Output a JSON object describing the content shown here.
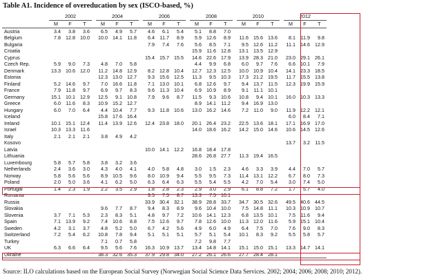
{
  "title": "Table A1. Incidence of overeducation by sex (ISCO-based, %)",
  "source": "Source: ILO calculations based on the European Social Survey (Norwegian Social Science Data Services. 2002; 2004; 2006; 2008; 2010; 2012).",
  "years": [
    "2002",
    "2004",
    "2006",
    "2008",
    "2010",
    "2012"
  ],
  "sub_headers": [
    "M",
    "F",
    "T"
  ],
  "highlight_color": "#cc1c2b",
  "rows": [
    {
      "country": "Austria",
      "v": [
        "3.4",
        "3.8",
        "3.6",
        "6.5",
        "4.9",
        "5.7",
        "4.6",
        "6.1",
        "5.4",
        "5.1",
        "8.8",
        "7.0",
        "",
        "",
        "",
        "",
        "",
        ""
      ]
    },
    {
      "country": "Belgium",
      "v": [
        "7.8",
        "12.8",
        "10.0",
        "10.0",
        "14.1",
        "11.8",
        "6.4",
        "11.7",
        "8.9",
        "5.9",
        "12.6",
        "8.9",
        "11.6",
        "15.6",
        "13.6",
        "8.1",
        "11.9",
        "9.8"
      ]
    },
    {
      "country": "Bulgaria",
      "v": [
        "",
        "",
        "",
        "",
        "",
        "",
        "7.9",
        "7.4",
        "7.6",
        "5.6",
        "8.5",
        "7.1",
        "9.5",
        "12.6",
        "11.2",
        "11.1",
        "14.6",
        "12.9"
      ]
    },
    {
      "country": "Croatia",
      "v": [
        "",
        "",
        "",
        "",
        "",
        "",
        "",
        "",
        "",
        "15.9",
        "11.6",
        "12.8",
        "13.1",
        "13.5",
        "12.9",
        "",
        "",
        ""
      ]
    },
    {
      "country": "Cyprus",
      "v": [
        "",
        "",
        "",
        "",
        "",
        "",
        "15.4",
        "15.7",
        "15.5",
        "14.6",
        "22.6",
        "17.9",
        "13.9",
        "28.3",
        "21.0",
        "23.0",
        "29.1",
        "26.1"
      ]
    },
    {
      "country": "Czech Rep.",
      "v": [
        "5.9",
        "9.0",
        "7.3",
        "4.8",
        "7.0",
        "5.8",
        "",
        "",
        "",
        "4.4",
        "9.9",
        "6.8",
        "6.0",
        "9.7",
        "7.6",
        "6.6",
        "10.1",
        "7.9"
      ]
    },
    {
      "country": "Denmark",
      "v": [
        "13.3",
        "10.6",
        "12.0",
        "11.2",
        "14.8",
        "12.9",
        "8.2",
        "12.8",
        "10.4",
        "12.7",
        "12.3",
        "12.5",
        "10.0",
        "10.9",
        "10.4",
        "14.1",
        "23.3",
        "18.5"
      ]
    },
    {
      "country": "Estonia",
      "v": [
        "",
        "",
        "",
        "12.3",
        "13.0",
        "12.7",
        "9.3",
        "15.6",
        "12.5",
        "11.3",
        "9.5",
        "10.3",
        "17.3",
        "21.2",
        "19.5",
        "11.7",
        "15.5",
        "13.8"
      ]
    },
    {
      "country": "Finland",
      "v": [
        "5.2",
        "14.6",
        "9.7",
        "7.0",
        "16.6",
        "11.8",
        "7.1",
        "13.0",
        "10.1",
        "6.8",
        "12.6",
        "9.7",
        "9.4",
        "13.7",
        "11.5",
        "12.3",
        "19.9",
        "15.9"
      ]
    },
    {
      "country": "France",
      "v": [
        "7.9",
        "11.8",
        "9.7",
        "6.9",
        "9.7",
        "8.3",
        "9.6",
        "11.3",
        "10.4",
        "6.9",
        "10.9",
        "8.9",
        "9.1",
        "11.1",
        "10.1",
        "",
        "",
        ""
      ]
    },
    {
      "country": "Germany",
      "v": [
        "15.1",
        "10.1",
        "12.9",
        "12.5",
        "9.1",
        "10.8",
        "7.9",
        "9.6",
        "8.7",
        "11.5",
        "9.3",
        "10.6",
        "10.8",
        "9.4",
        "10.1",
        "16.0",
        "10.3",
        "13.3"
      ]
    },
    {
      "country": "Greece",
      "v": [
        "6.0",
        "11.6",
        "8.3",
        "10.9",
        "15.2",
        "12.7",
        "",
        "",
        "",
        "8.9",
        "14.1",
        "11.2",
        "9.4",
        "16.9",
        "13.0",
        "",
        "",
        ""
      ]
    },
    {
      "country": "Hungary",
      "v": [
        "6.0",
        "7.0",
        "6.4",
        "4.4",
        "10.4",
        "7.7",
        "9.3",
        "11.8",
        "10.6",
        "13.0",
        "16.2",
        "14.6",
        "7.2",
        "11.0",
        "9.0",
        "11.9",
        "12.2",
        "12.1"
      ]
    },
    {
      "country": "Iceland",
      "v": [
        "",
        "",
        "",
        "15.8",
        "17.6",
        "16.4",
        "",
        "",
        "",
        "",
        "",
        "",
        "",
        "",
        "",
        "6.0",
        "8.4",
        "7.1"
      ]
    },
    {
      "country": "Ireland",
      "v": [
        "10.1",
        "15.1",
        "12.4",
        "11.4",
        "13.9",
        "12.6",
        "12.4",
        "23.8",
        "18.0",
        "20.1",
        "26.4",
        "23.2",
        "22.5",
        "13.6",
        "18.1",
        "17.1",
        "16.9",
        "17.0"
      ]
    },
    {
      "country": "Israel",
      "v": [
        "10.3",
        "13.3",
        "11.6",
        "",
        "",
        "",
        "",
        "",
        "",
        "14.0",
        "18.6",
        "16.2",
        "14.2",
        "15.0",
        "14.6",
        "10.6",
        "14.5",
        "12.6"
      ]
    },
    {
      "country": "Italy",
      "v": [
        "2.1",
        "2.1",
        "2.1",
        "3.8",
        "4.9",
        "4.2",
        "",
        "",
        "",
        "",
        "",
        "",
        "",
        "",
        "",
        "",
        "",
        ""
      ]
    },
    {
      "country": "Kosovo",
      "v": [
        "",
        "",
        "",
        "",
        "",
        "",
        "",
        "",
        "",
        "",
        "",
        "",
        "",
        "",
        "",
        "13.7",
        "3.2",
        "11.5"
      ]
    },
    {
      "country": "Latvia",
      "v": [
        "",
        "",
        "",
        "",
        "",
        "",
        "10.0",
        "14.1",
        "12.2",
        "16.8",
        "18.4",
        "17.8",
        "",
        "",
        "",
        "",
        "",
        ""
      ]
    },
    {
      "country": "Lithuania",
      "v": [
        "",
        "",
        "",
        "",
        "",
        "",
        "",
        "",
        "",
        "28.6",
        "26.8",
        "27.7",
        "11.3",
        "19.4",
        "16.5",
        "",
        "",
        ""
      ]
    },
    {
      "country": "Luxembourg",
      "v": [
        "5.8",
        "5.7",
        "5.8",
        "3.8",
        "3.2",
        "3.6",
        "",
        "",
        "",
        "",
        "",
        "",
        "",
        "",
        "",
        "",
        "",
        ""
      ]
    },
    {
      "country": "Netherlands",
      "v": [
        "2.4",
        "3.6",
        "3.0",
        "4.3",
        "4.0",
        "4.1",
        "4.0",
        "5.8",
        "4.8",
        "3.0",
        "1.5",
        "2.3",
        "4.6",
        "3.3",
        "3.9",
        "4.4",
        "7.0",
        "5.7"
      ]
    },
    {
      "country": "Norway",
      "v": [
        "5.8",
        "5.6",
        "5.6",
        "8.9",
        "10.5",
        "9.6",
        "8.0",
        "10.9",
        "9.4",
        "5.5",
        "9.5",
        "7.3",
        "11.4",
        "13.1",
        "12.2",
        "6.7",
        "8.0",
        "7.3"
      ]
    },
    {
      "country": "Poland",
      "v": [
        "2.0",
        "5.0",
        "3.6",
        "4.1",
        "6.2",
        "5.0",
        "6.3",
        "6.4",
        "6.3",
        "5.5",
        "5.4",
        "5.5",
        "4.2",
        "7.0",
        "5.4",
        "3.0",
        "7.4",
        "5.0"
      ]
    },
    {
      "country": "Portugal",
      "v": [
        "1.4",
        "2.3",
        "1.9",
        "2.2",
        "3.5",
        "2.9",
        "1.8",
        "2.8",
        "2.3",
        "2.9",
        "3.0",
        "2.9",
        "6.1",
        "8.8",
        "7.2",
        "1.7",
        "5.7",
        "4.0"
      ]
    },
    {
      "country": "Romania",
      "v": [
        "",
        "",
        "",
        "",
        "",
        "",
        "9.5",
        "7.5",
        "8.7",
        "13.3",
        "7.5",
        "10.1",
        "",
        "",
        "",
        "",
        "",
        ""
      ]
    },
    {
      "country": "Russia",
      "v": [
        "",
        "",
        "",
        "",
        "",
        "",
        "33.9",
        "30.4",
        "32.1",
        "38.9",
        "28.8",
        "33.7",
        "34.7",
        "30.5",
        "32.6",
        "49.5",
        "40.6",
        "44.5"
      ]
    },
    {
      "country": "Slovakia",
      "v": [
        "",
        "",
        "",
        "9.6",
        "7.7",
        "8.7",
        "9.4",
        "8.3",
        "8.9",
        "9.6",
        "10.4",
        "10.0",
        "7.5",
        "14.8",
        "11.1",
        "10.3",
        "10.9",
        "10.7"
      ]
    },
    {
      "country": "Slovenia",
      "v": [
        "3.7",
        "7.1",
        "5.3",
        "2.3",
        "8.3",
        "5.1",
        "4.8",
        "9.7",
        "7.2",
        "10.6",
        "14.1",
        "12.3",
        "6.8",
        "13.5",
        "10.1",
        "7.5",
        "11.6",
        "9.4"
      ]
    },
    {
      "country": "Spain",
      "v": [
        "7.1",
        "13.9",
        "9.2",
        "7.4",
        "10.6",
        "8.8",
        "7.5",
        "12.6",
        "9.7",
        "7.8",
        "12.6",
        "10.0",
        "11.3",
        "12.0",
        "11.6",
        "5.9",
        "15.1",
        "10.4"
      ]
    },
    {
      "country": "Sweden",
      "v": [
        "4.2",
        "3.1",
        "3.7",
        "4.8",
        "5.2",
        "5.0",
        "6.7",
        "4.2",
        "5.6",
        "4.9",
        "6.0",
        "4.9",
        "6.4",
        "7.5",
        "7.0",
        "7.6",
        "9.0",
        "8.3"
      ]
    },
    {
      "country": "Switzerland",
      "v": [
        "7.2",
        "5.4",
        "6.2",
        "10.8",
        "7.8",
        "9.4",
        "5.1",
        "5.1",
        "5.1",
        "5.7",
        "5.1",
        "5.4",
        "10.1",
        "8.3",
        "9.2",
        "5.5",
        "5.8",
        "5.7"
      ]
    },
    {
      "country": "Turkey",
      "v": [
        "",
        "",
        "",
        "7.1",
        "0.7",
        "5.8",
        "",
        "",
        "",
        "7.2",
        "9.8",
        "7.7",
        "",
        "",
        "",
        "",
        "",
        ""
      ]
    },
    {
      "country": "UK",
      "v": [
        "6.3",
        "6.6",
        "6.4",
        "9.5",
        "5.6",
        "7.6",
        "16.3",
        "10.9",
        "13.7",
        "13.4",
        "14.8",
        "14.1",
        "15.1",
        "15.0",
        "15.1",
        "13.3",
        "14.7",
        "14.1"
      ]
    },
    {
      "country": "Ukraine",
      "v": [
        "",
        "",
        "",
        "38.3",
        "32.6",
        "35.3",
        "37.9",
        "29.8",
        "34.0",
        "27.2",
        "26.1",
        "26.6",
        "27.7",
        "28.4",
        "28.1",
        "",
        "",
        ""
      ]
    }
  ]
}
